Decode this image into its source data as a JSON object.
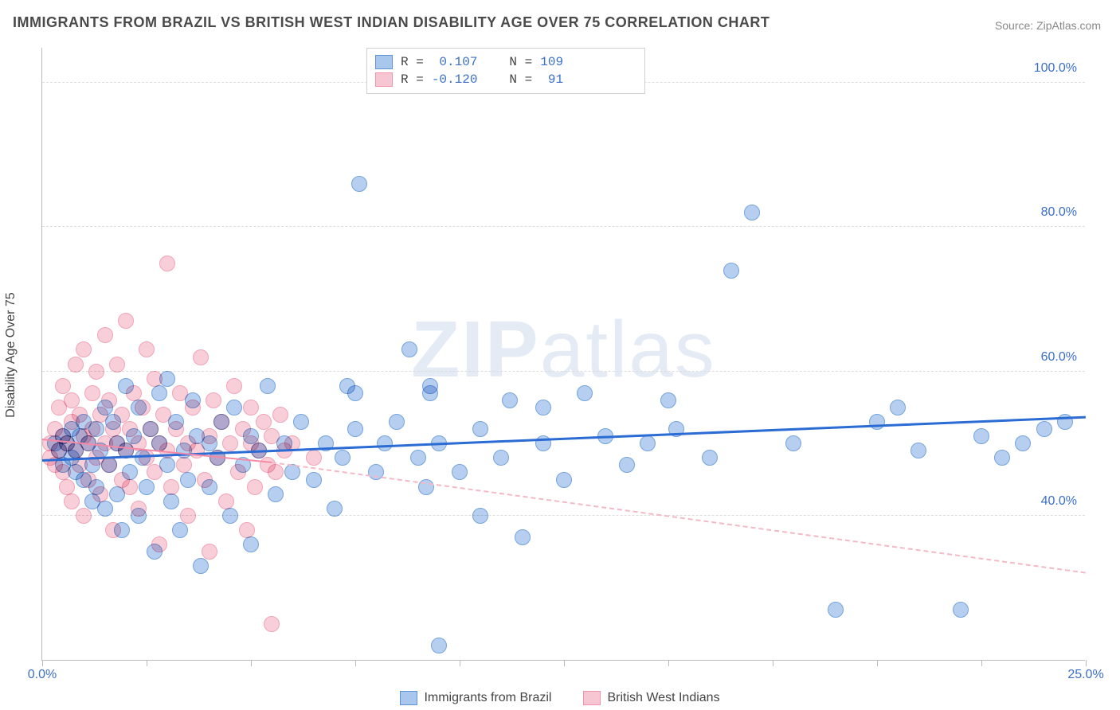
{
  "title": "IMMIGRANTS FROM BRAZIL VS BRITISH WEST INDIAN DISABILITY AGE OVER 75 CORRELATION CHART",
  "source": "Source: ZipAtlas.com",
  "watermark_bold": "ZIP",
  "watermark_thin": "atlas",
  "ylabel": "Disability Age Over 75",
  "chart": {
    "type": "scatter",
    "background_color": "#ffffff",
    "grid_color": "#dddddd",
    "axis_color": "#bbbbbb",
    "xlim": [
      0,
      25
    ],
    "ylim": [
      20,
      105
    ],
    "xtick_positions": [
      0,
      2.5,
      5,
      7.5,
      10,
      12.5,
      15,
      17.5,
      20,
      22.5,
      25
    ],
    "xtick_labels_shown": {
      "0": "0.0%",
      "25": "25.0%"
    },
    "ytick_positions": [
      40,
      60,
      80,
      100
    ],
    "ytick_labels": [
      "40.0%",
      "60.0%",
      "80.0%",
      "100.0%"
    ],
    "marker_radius": 10,
    "marker_stroke_width": 1.5,
    "marker_fill_opacity": 0.35,
    "series": [
      {
        "name": "Immigrants from Brazil",
        "color_fill": "#a9c6ec",
        "color_stroke": "#5e94d6",
        "r_label": "R =",
        "r_value": " 0.107",
        "n_label": "N =",
        "n_value": "109",
        "trend": {
          "x1": 0,
          "y1": 47.5,
          "x2": 25,
          "y2": 53.5,
          "color": "#2b6cd4",
          "width": 3,
          "style": "solid"
        },
        "points": [
          [
            0.3,
            50
          ],
          [
            0.4,
            49
          ],
          [
            0.5,
            51
          ],
          [
            0.5,
            47
          ],
          [
            0.6,
            50
          ],
          [
            0.7,
            52
          ],
          [
            0.7,
            48
          ],
          [
            0.8,
            49
          ],
          [
            0.8,
            46
          ],
          [
            0.9,
            51
          ],
          [
            1.0,
            53
          ],
          [
            1.0,
            45
          ],
          [
            1.1,
            50
          ],
          [
            1.2,
            47
          ],
          [
            1.2,
            42
          ],
          [
            1.3,
            52
          ],
          [
            1.3,
            44
          ],
          [
            1.4,
            49
          ],
          [
            1.5,
            55
          ],
          [
            1.5,
            41
          ],
          [
            1.6,
            47
          ],
          [
            1.7,
            53
          ],
          [
            1.8,
            50
          ],
          [
            1.8,
            43
          ],
          [
            1.9,
            38
          ],
          [
            2.0,
            49
          ],
          [
            2.0,
            58
          ],
          [
            2.1,
            46
          ],
          [
            2.2,
            51
          ],
          [
            2.3,
            55
          ],
          [
            2.3,
            40
          ],
          [
            2.4,
            48
          ],
          [
            2.5,
            44
          ],
          [
            2.6,
            52
          ],
          [
            2.7,
            35
          ],
          [
            2.8,
            50
          ],
          [
            2.8,
            57
          ],
          [
            3.0,
            47
          ],
          [
            3.0,
            59
          ],
          [
            3.1,
            42
          ],
          [
            3.2,
            53
          ],
          [
            3.3,
            38
          ],
          [
            3.4,
            49
          ],
          [
            3.5,
            45
          ],
          [
            3.6,
            56
          ],
          [
            3.7,
            51
          ],
          [
            3.8,
            33
          ],
          [
            4.0,
            50
          ],
          [
            4.0,
            44
          ],
          [
            4.2,
            48
          ],
          [
            4.3,
            53
          ],
          [
            4.5,
            40
          ],
          [
            4.6,
            55
          ],
          [
            4.8,
            47
          ],
          [
            5.0,
            51
          ],
          [
            5.0,
            36
          ],
          [
            5.2,
            49
          ],
          [
            5.4,
            58
          ],
          [
            5.6,
            43
          ],
          [
            5.8,
            50
          ],
          [
            6.0,
            46
          ],
          [
            6.2,
            53
          ],
          [
            6.5,
            45
          ],
          [
            6.8,
            50
          ],
          [
            7.0,
            41
          ],
          [
            7.2,
            48
          ],
          [
            7.3,
            58
          ],
          [
            7.5,
            57
          ],
          [
            7.5,
            52
          ],
          [
            7.6,
            86
          ],
          [
            8.0,
            46
          ],
          [
            8.2,
            50
          ],
          [
            8.5,
            53
          ],
          [
            8.8,
            63
          ],
          [
            9.0,
            48
          ],
          [
            9.2,
            44
          ],
          [
            9.3,
            58
          ],
          [
            9.3,
            57
          ],
          [
            9.5,
            50
          ],
          [
            9.5,
            22
          ],
          [
            10.0,
            46
          ],
          [
            10.5,
            40
          ],
          [
            10.5,
            52
          ],
          [
            11.0,
            48
          ],
          [
            11.2,
            56
          ],
          [
            11.5,
            37
          ],
          [
            12.0,
            50
          ],
          [
            12.0,
            55
          ],
          [
            12.5,
            45
          ],
          [
            13.0,
            57
          ],
          [
            13.5,
            51
          ],
          [
            14.0,
            47
          ],
          [
            14.5,
            50
          ],
          [
            15.0,
            56
          ],
          [
            15.2,
            52
          ],
          [
            16.0,
            48
          ],
          [
            16.5,
            74
          ],
          [
            17.0,
            82
          ],
          [
            18.0,
            50
          ],
          [
            19.0,
            27
          ],
          [
            20.0,
            53
          ],
          [
            20.5,
            55
          ],
          [
            21.0,
            49
          ],
          [
            22.0,
            27
          ],
          [
            22.5,
            51
          ],
          [
            23.0,
            48
          ],
          [
            23.5,
            50
          ],
          [
            24.0,
            52
          ],
          [
            24.5,
            53
          ]
        ]
      },
      {
        "name": "British West Indians",
        "color_fill": "#f7c6d3",
        "color_stroke": "#ef94ac",
        "r_label": "R =",
        "r_value": "-0.120",
        "n_label": "N =",
        "n_value": " 91",
        "trend_solid": {
          "x1": 0,
          "y1": 50.5,
          "x2": 5.5,
          "y2": 47.3,
          "color": "#f48aa6",
          "width": 2,
          "style": "solid"
        },
        "trend_dash": {
          "x1": 5.5,
          "y1": 47.3,
          "x2": 25,
          "y2": 32,
          "color": "#f5b8c6",
          "width": 2,
          "style": "dashed"
        },
        "points": [
          [
            0.2,
            50
          ],
          [
            0.2,
            48
          ],
          [
            0.3,
            52
          ],
          [
            0.3,
            47
          ],
          [
            0.4,
            55
          ],
          [
            0.4,
            49
          ],
          [
            0.5,
            51
          ],
          [
            0.5,
            46
          ],
          [
            0.5,
            58
          ],
          [
            0.6,
            50
          ],
          [
            0.6,
            44
          ],
          [
            0.7,
            53
          ],
          [
            0.7,
            42
          ],
          [
            0.7,
            56
          ],
          [
            0.8,
            49
          ],
          [
            0.8,
            61
          ],
          [
            0.9,
            47
          ],
          [
            0.9,
            54
          ],
          [
            1.0,
            51
          ],
          [
            1.0,
            40
          ],
          [
            1.0,
            63
          ],
          [
            1.1,
            50
          ],
          [
            1.1,
            45
          ],
          [
            1.2,
            57
          ],
          [
            1.2,
            52
          ],
          [
            1.3,
            48
          ],
          [
            1.3,
            60
          ],
          [
            1.4,
            54
          ],
          [
            1.4,
            43
          ],
          [
            1.5,
            50
          ],
          [
            1.5,
            65
          ],
          [
            1.6,
            47
          ],
          [
            1.6,
            56
          ],
          [
            1.7,
            52
          ],
          [
            1.7,
            38
          ],
          [
            1.8,
            50
          ],
          [
            1.8,
            61
          ],
          [
            1.9,
            45
          ],
          [
            1.9,
            54
          ],
          [
            2.0,
            49
          ],
          [
            2.0,
            67
          ],
          [
            2.1,
            52
          ],
          [
            2.1,
            44
          ],
          [
            2.2,
            57
          ],
          [
            2.3,
            50
          ],
          [
            2.3,
            41
          ],
          [
            2.4,
            55
          ],
          [
            2.5,
            48
          ],
          [
            2.5,
            63
          ],
          [
            2.6,
            52
          ],
          [
            2.7,
            46
          ],
          [
            2.7,
            59
          ],
          [
            2.8,
            50
          ],
          [
            2.8,
            36
          ],
          [
            2.9,
            54
          ],
          [
            3.0,
            49
          ],
          [
            3.0,
            75
          ],
          [
            3.1,
            44
          ],
          [
            3.2,
            52
          ],
          [
            3.3,
            57
          ],
          [
            3.4,
            47
          ],
          [
            3.5,
            50
          ],
          [
            3.5,
            40
          ],
          [
            3.6,
            55
          ],
          [
            3.7,
            49
          ],
          [
            3.8,
            62
          ],
          [
            3.9,
            45
          ],
          [
            4.0,
            51
          ],
          [
            4.0,
            35
          ],
          [
            4.1,
            56
          ],
          [
            4.2,
            48
          ],
          [
            4.3,
            53
          ],
          [
            4.4,
            42
          ],
          [
            4.5,
            50
          ],
          [
            4.6,
            58
          ],
          [
            4.7,
            46
          ],
          [
            4.8,
            52
          ],
          [
            4.9,
            38
          ],
          [
            5.0,
            50
          ],
          [
            5.0,
            55
          ],
          [
            5.1,
            44
          ],
          [
            5.2,
            49
          ],
          [
            5.3,
            53
          ],
          [
            5.4,
            47
          ],
          [
            5.5,
            51
          ],
          [
            5.5,
            25
          ],
          [
            5.6,
            46
          ],
          [
            5.7,
            54
          ],
          [
            5.8,
            49
          ],
          [
            6.0,
            50
          ],
          [
            6.5,
            48
          ]
        ]
      }
    ],
    "legend_top": {
      "swatch_blue_fill": "#a9c6ec",
      "swatch_blue_stroke": "#5e94d6",
      "swatch_pink_fill": "#f7c6d3",
      "swatch_pink_stroke": "#ef94ac"
    },
    "legend_bottom": [
      {
        "label": "Immigrants from Brazil",
        "fill": "#a9c6ec",
        "stroke": "#5e94d6"
      },
      {
        "label": "British West Indians",
        "fill": "#f7c6d3",
        "stroke": "#ef94ac"
      }
    ]
  }
}
